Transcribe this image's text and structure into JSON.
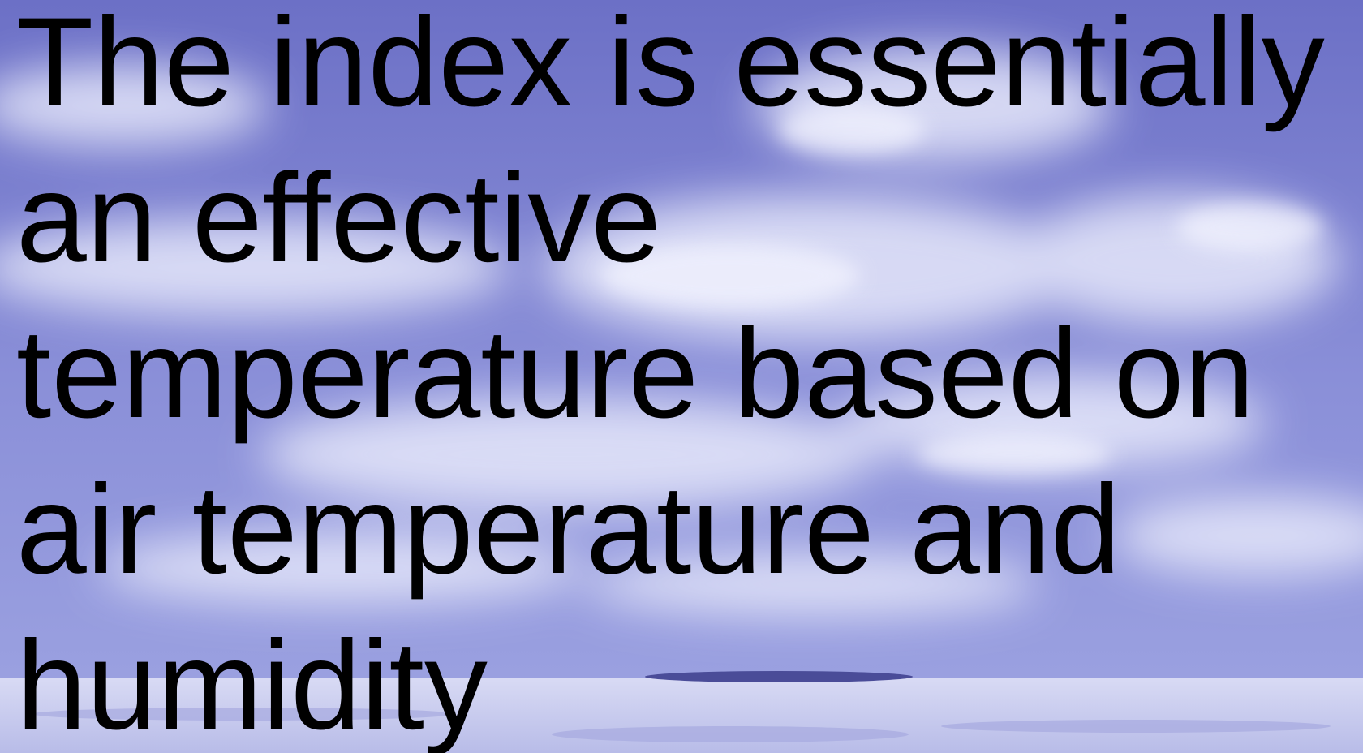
{
  "slide": {
    "lines": [
      "The index is essentially",
      "an effective",
      "temperature based on",
      "air temperature and",
      "humidity"
    ]
  }
}
